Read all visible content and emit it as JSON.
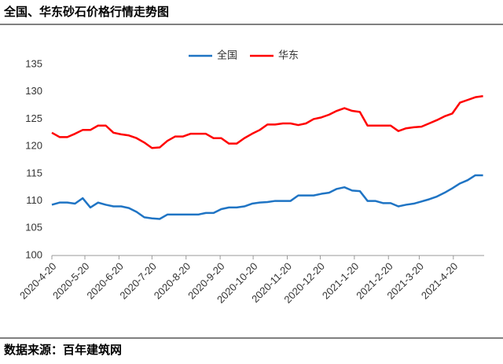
{
  "chart_data": {
    "type": "line",
    "title": "全国、华东砂石价格行情走势图",
    "source": "数据来源：百年建筑网",
    "x": [
      "2020-4-20",
      "2020-4-27",
      "2020-5-4",
      "2020-5-11",
      "2020-5-18",
      "2020-5-25",
      "2020-6-1",
      "2020-6-8",
      "2020-6-15",
      "2020-6-22",
      "2020-6-29",
      "2020-7-6",
      "2020-7-13",
      "2020-7-20",
      "2020-7-27",
      "2020-8-3",
      "2020-8-10",
      "2020-8-17",
      "2020-8-24",
      "2020-8-31",
      "2020-9-7",
      "2020-9-14",
      "2020-9-21",
      "2020-9-28",
      "2020-10-5",
      "2020-10-12",
      "2020-10-19",
      "2020-10-26",
      "2020-11-2",
      "2020-11-9",
      "2020-11-16",
      "2020-11-23",
      "2020-11-30",
      "2020-12-7",
      "2020-12-14",
      "2020-12-21",
      "2020-12-28",
      "2021-1-4",
      "2021-1-11",
      "2021-1-18",
      "2021-1-25",
      "2021-2-1",
      "2021-2-8",
      "2021-2-15",
      "2021-2-22",
      "2021-3-1",
      "2021-3-8",
      "2021-3-15",
      "2021-3-22",
      "2021-3-29",
      "2021-4-5",
      "2021-4-12",
      "2021-4-19",
      "2021-4-26",
      "2021-5-3",
      "2021-5-10",
      "2021-5-17"
    ],
    "series": [
      {
        "name": "全国",
        "color": "#1f74c4",
        "values": [
          109.3,
          109.7,
          109.7,
          109.5,
          110.5,
          108.8,
          109.7,
          109.3,
          109.0,
          109.0,
          108.7,
          108.0,
          107.0,
          106.8,
          106.7,
          107.5,
          107.5,
          107.5,
          107.5,
          107.5,
          107.8,
          107.8,
          108.5,
          108.8,
          108.8,
          109.0,
          109.5,
          109.7,
          109.8,
          110.0,
          110.0,
          110.0,
          111.0,
          111.0,
          111.0,
          111.3,
          111.5,
          112.2,
          112.5,
          111.9,
          111.8,
          110.0,
          110.0,
          109.6,
          109.6,
          109.0,
          109.3,
          109.5,
          109.9,
          110.3,
          110.8,
          111.5,
          112.3,
          113.2,
          113.8,
          114.7,
          114.7
        ]
      },
      {
        "name": "华东",
        "color": "#ff0000",
        "values": [
          122.5,
          121.7,
          121.7,
          122.3,
          123.0,
          123.0,
          123.8,
          123.8,
          122.5,
          122.2,
          122.0,
          121.5,
          120.7,
          119.7,
          119.8,
          121.0,
          121.8,
          121.8,
          122.3,
          122.3,
          122.3,
          121.5,
          121.5,
          120.5,
          120.5,
          121.5,
          122.3,
          123.0,
          124.0,
          124.0,
          124.2,
          124.2,
          123.9,
          124.2,
          125.0,
          125.3,
          125.8,
          126.5,
          127.0,
          126.5,
          126.3,
          123.8,
          123.8,
          123.8,
          123.8,
          122.8,
          123.3,
          123.5,
          123.6,
          124.2,
          124.8,
          125.5,
          126.0,
          128.0,
          128.5,
          129.0,
          129.2
        ]
      }
    ],
    "xlim": [
      "2020-4-20",
      "2021-5-18"
    ],
    "xticks": [
      "2020-4-20",
      "2020-5-20",
      "2020-6-20",
      "2020-7-20",
      "2020-8-20",
      "2020-9-20",
      "2020-10-20",
      "2020-11-20",
      "2020-12-20",
      "2021-1-20",
      "2021-2-20",
      "2021-3-20",
      "2021-4-20"
    ],
    "ylim": [
      100,
      135
    ],
    "yticks": [
      100,
      105,
      110,
      115,
      120,
      125,
      130,
      135
    ],
    "grid": false,
    "legend": "top"
  }
}
